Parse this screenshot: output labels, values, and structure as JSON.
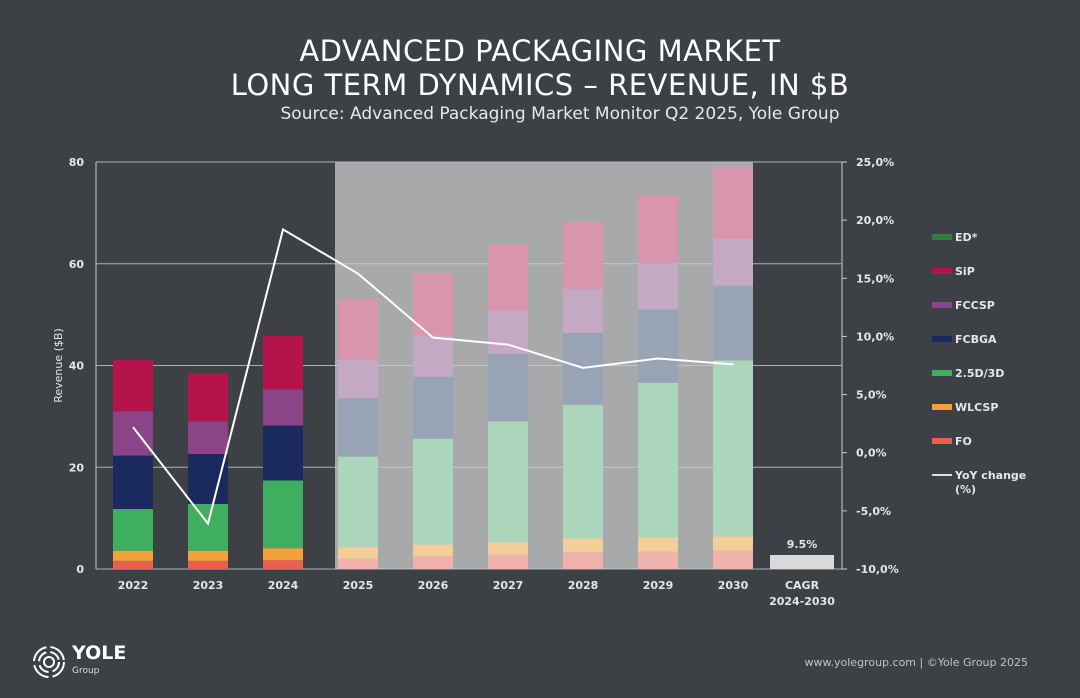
{
  "header": {
    "title_line1": "ADVANCED PACKAGING MARKET",
    "title_line2": "LONG TERM DYNAMICS – REVENUE, IN $B",
    "subtitle": "Source: Advanced Packaging Market Monitor Q2 2025, Yole Group"
  },
  "footer": {
    "logo_text": "YOLE",
    "logo_sub": "Group",
    "credit": "www.yolegroup.com | ©Yole Group 2025"
  },
  "chart_data": {
    "type": "bar",
    "stacked": true,
    "title": "ADVANCED PACKAGING MARKET LONG TERM DYNAMICS – REVENUE, IN $B",
    "ylabel": "Revenue ($B)",
    "ylim": [
      0,
      80
    ],
    "yticks": [
      "0",
      "20",
      "40",
      "60",
      "80"
    ],
    "y2lim": [
      -10,
      25
    ],
    "y2ticks": [
      "-10,0%",
      "-5,0%",
      "0,0%",
      "5,0%",
      "10,0%",
      "15,0%",
      "20,0%",
      "25,0%"
    ],
    "grid": true,
    "legend_position": "right",
    "categories": [
      "2022",
      "2023",
      "2024",
      "2025",
      "2026",
      "2027",
      "2028",
      "2029",
      "2030"
    ],
    "forecast_from": "2025",
    "series": [
      {
        "name": "FO",
        "color": "#e8604e",
        "forecast_color": "#efb2ac",
        "values": [
          1.6,
          1.6,
          1.7,
          2.0,
          2.5,
          2.8,
          3.3,
          3.4,
          3.6
        ]
      },
      {
        "name": "WLCSP",
        "color": "#f2a23a",
        "forecast_color": "#f2cf98",
        "values": [
          2.0,
          2.0,
          2.4,
          2.3,
          2.3,
          2.4,
          2.7,
          2.8,
          2.8
        ]
      },
      {
        "name": "2.5D/3D",
        "color": "#3fae5e",
        "forecast_color": "#acd6bb",
        "values": [
          8.2,
          9.2,
          13.3,
          17.8,
          20.8,
          23.8,
          26.3,
          30.4,
          34.6
        ]
      },
      {
        "name": "FCBGA",
        "color": "#1b2a5e",
        "forecast_color": "#98a3b5",
        "values": [
          10.5,
          9.8,
          10.8,
          11.5,
          12.2,
          13.3,
          14.1,
          14.4,
          14.7
        ]
      },
      {
        "name": "FCCSP",
        "color": "#8a4589",
        "forecast_color": "#c4a9c3",
        "values": [
          8.7,
          6.4,
          7.1,
          7.5,
          8.1,
          8.5,
          8.7,
          9.0,
          9.2
        ]
      },
      {
        "name": "SiP",
        "color": "#b5134a",
        "forecast_color": "#d995ad",
        "values": [
          10.1,
          9.5,
          10.6,
          11.9,
          12.3,
          12.9,
          13.1,
          13.4,
          14.1
        ]
      },
      {
        "name": "ED*",
        "color": "#2e7d3e",
        "forecast_color": "#2e7d3e",
        "values": [
          0,
          0,
          0,
          0,
          0,
          0,
          0,
          0,
          0
        ]
      }
    ],
    "line_series": {
      "name": "YoY change (%)",
      "axis": "right",
      "color": "#ffffff",
      "values": [
        2.2,
        -6.1,
        19.2,
        15.4,
        9.9,
        9.3,
        7.3,
        8.1,
        7.6
      ]
    },
    "legend": [
      "ED*",
      "SiP",
      "FCCSP",
      "FCBGA",
      "2.5D/3D",
      "WLCSP",
      "FO",
      "YoY change (%)"
    ],
    "legend_line2": "(%)",
    "legend_yoy_line1": "YoY change",
    "cagr": {
      "label_line1": "CAGR",
      "label_line2": "2024-2030",
      "value": "9.5%"
    },
    "colors": {
      "background": "#3d4146",
      "forecast_shade": "#a7a9ab",
      "cagr_bar": "#d9d9d9"
    }
  }
}
